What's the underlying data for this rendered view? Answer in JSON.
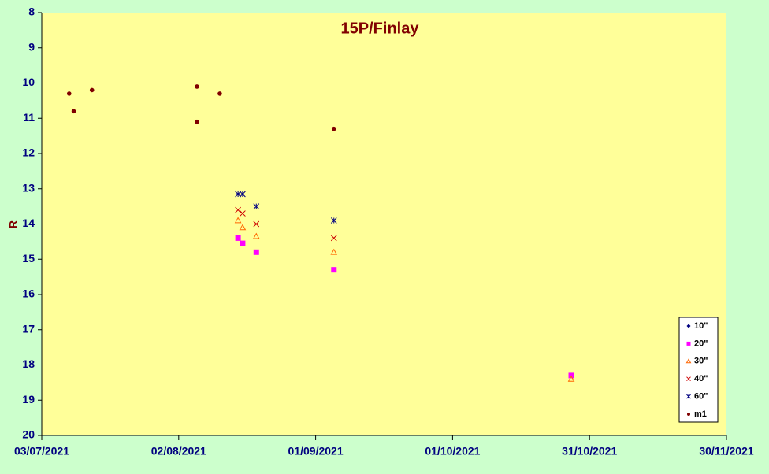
{
  "chart_data": {
    "type": "scatter",
    "title": "15P/Finlay",
    "y_label": "R",
    "xlim": [
      "2021-07-03",
      "2021-11-30"
    ],
    "xticks": [
      {
        "value": "2021-07-03",
        "label": "03/07/2021"
      },
      {
        "value": "2021-08-02",
        "label": "02/08/2021"
      },
      {
        "value": "2021-09-01",
        "label": "01/09/2021"
      },
      {
        "value": "2021-10-01",
        "label": "01/10/2021"
      },
      {
        "value": "2021-10-31",
        "label": "31/10/2021"
      },
      {
        "value": "2021-11-30",
        "label": "30/11/2021"
      }
    ],
    "ylim": [
      8,
      20
    ],
    "y_inverted": true,
    "yticks": [
      8,
      9,
      10,
      11,
      12,
      13,
      14,
      15,
      16,
      17,
      18,
      19,
      20
    ],
    "grid": false,
    "legend": "lower right",
    "series": [
      {
        "name": "10\"",
        "color": "#000080",
        "marker": "diamond",
        "x": [],
        "values": []
      },
      {
        "name": "20\"",
        "color": "#ff00ff",
        "marker": "square",
        "x": [
          "2021-08-15",
          "2021-08-16",
          "2021-08-19",
          "2021-09-05",
          "2021-10-27"
        ],
        "values": [
          14.4,
          14.55,
          14.8,
          15.3,
          18.3
        ]
      },
      {
        "name": "30\"",
        "color": "#ff6600",
        "marker": "triangle",
        "x": [
          "2021-08-15",
          "2021-08-16",
          "2021-08-19",
          "2021-09-05",
          "2021-10-27"
        ],
        "values": [
          13.9,
          14.1,
          14.35,
          14.8,
          18.4
        ]
      },
      {
        "name": "40\"",
        "color": "#cc0000",
        "marker": "x",
        "x": [
          "2021-08-15",
          "2021-08-16",
          "2021-08-19",
          "2021-09-05"
        ],
        "values": [
          13.6,
          13.7,
          14.0,
          14.4
        ]
      },
      {
        "name": "60\"",
        "color": "#000080",
        "marker": "star",
        "x": [
          "2021-08-15",
          "2021-08-16",
          "2021-08-19",
          "2021-09-05"
        ],
        "values": [
          13.15,
          13.15,
          13.5,
          13.9
        ]
      },
      {
        "name": "m1",
        "color": "#800000",
        "marker": "circle",
        "x": [
          "2021-07-09",
          "2021-07-10",
          "2021-07-14",
          "2021-08-06",
          "2021-08-06",
          "2021-08-11",
          "2021-09-05"
        ],
        "values": [
          10.3,
          10.8,
          10.2,
          10.1,
          11.1,
          10.3,
          11.3
        ]
      }
    ]
  }
}
